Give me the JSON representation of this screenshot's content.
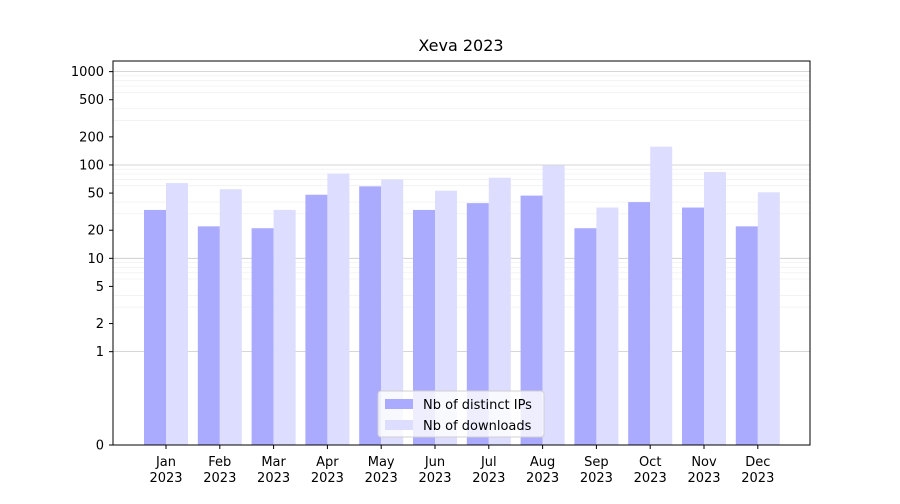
{
  "chart_data": {
    "type": "bar",
    "title": "Xeva 2023",
    "xlabel": "",
    "ylabel": "",
    "yscale": "symlog",
    "ylim": [
      0,
      1300
    ],
    "yticks": [
      0,
      1,
      2,
      5,
      10,
      20,
      50,
      100,
      200,
      500,
      1000
    ],
    "grid": "horizontal",
    "legend_position": "bottom-center",
    "categories": [
      "Jan\n2023",
      "Feb\n2023",
      "Mar\n2023",
      "Apr\n2023",
      "May\n2023",
      "Jun\n2023",
      "Jul\n2023",
      "Aug\n2023",
      "Sep\n2023",
      "Oct\n2023",
      "Nov\n2023",
      "Dec\n2023"
    ],
    "series": [
      {
        "name": "Nb of distinct IPs",
        "color": "#aaaaff",
        "values": [
          33,
          22,
          21,
          48,
          59,
          33,
          39,
          47,
          21,
          40,
          35,
          22
        ]
      },
      {
        "name": "Nb of downloads",
        "color": "#ddddff",
        "values": [
          64,
          55,
          33,
          81,
          70,
          53,
          73,
          99,
          35,
          157,
          84,
          51
        ]
      }
    ]
  }
}
